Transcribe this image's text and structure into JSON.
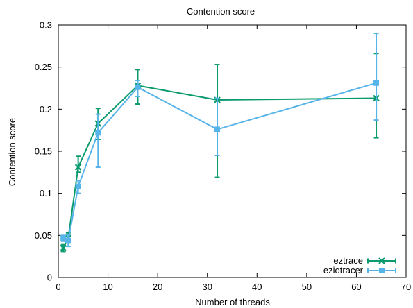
{
  "chart_data": {
    "type": "line",
    "title": "Contention score",
    "xlabel": "Number of threads",
    "ylabel": "Contention score",
    "xlim": [
      0,
      70
    ],
    "ylim": [
      0,
      0.3
    ],
    "xticks": [
      "0",
      "10",
      "20",
      "30",
      "40",
      "50",
      "60",
      "70"
    ],
    "yticks": [
      "0",
      "0.05",
      "0.1",
      "0.15",
      "0.2",
      "0.25",
      "0.3"
    ],
    "legend_position": "bottom-right",
    "grid": false,
    "series": [
      {
        "name": "eztrace",
        "color": "#0a9a6e",
        "marker": "cross",
        "x": [
          1,
          2,
          4,
          8,
          16,
          32,
          64
        ],
        "y": [
          0.035,
          0.047,
          0.131,
          0.183,
          0.228,
          0.211,
          0.213
        ],
        "err_low": [
          0.031,
          0.041,
          0.125,
          0.164,
          0.206,
          0.119,
          0.166
        ],
        "err_high": [
          0.039,
          0.053,
          0.144,
          0.201,
          0.247,
          0.253,
          0.266
        ]
      },
      {
        "name": "eziotracer",
        "color": "#56b4e9",
        "marker": "square",
        "x": [
          1,
          2,
          4,
          8,
          16,
          32,
          64
        ],
        "y": [
          0.047,
          0.044,
          0.108,
          0.172,
          0.226,
          0.176,
          0.231
        ],
        "err_low": [
          0.043,
          0.037,
          0.1,
          0.131,
          0.215,
          0.145,
          0.187
        ],
        "err_high": [
          0.05,
          0.051,
          0.115,
          0.194,
          0.234,
          0.213,
          0.29
        ]
      }
    ]
  }
}
